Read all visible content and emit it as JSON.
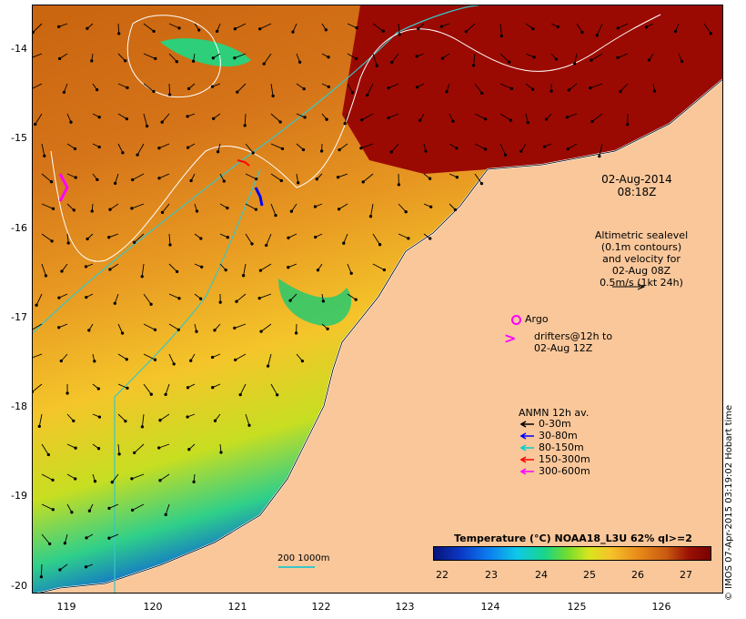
{
  "map": {
    "date_line1": "02-Aug-2014",
    "date_line2": "08:18Z",
    "alti_note_lines": [
      "Altimetric sealevel",
      "(0.1m contours)",
      "and velocity for",
      "02-Aug 08Z",
      "0.5m/s (1kt 24h)"
    ],
    "argo_label": "Argo",
    "drifters_line1": "drifters@12h to",
    "drifters_line2": "02-Aug 12Z",
    "anmn_title": "ANMN 12h av.",
    "anmn_items": [
      {
        "label": "0-30m",
        "color": "#000000"
      },
      {
        "label": "30-80m",
        "color": "#0000ff"
      },
      {
        "label": "80-150m",
        "color": "#00d0d0"
      },
      {
        "label": "150-300m",
        "color": "#ff0000"
      },
      {
        "label": "300-600m",
        "color": "#ff00ff"
      }
    ],
    "colorbar_title": "Temperature (°C) NOAA18_L3U 62% ql>=2",
    "colorbar_ticks": [
      "22",
      "23",
      "24",
      "25",
      "26",
      "27"
    ],
    "scale_label": "200  1000m",
    "credit": "© IMOS 07-Apr-2015 03:19:02 Hobart time",
    "lat_labels": [
      "-14",
      "-15",
      "-16",
      "-17",
      "-18",
      "-19",
      "-20"
    ],
    "lon_labels": [
      "119",
      "120",
      "121",
      "122",
      "123",
      "124",
      "125",
      "126"
    ],
    "colors": {
      "land": "#f9c79a",
      "argo": "#ff00ff",
      "contour": "#ffffff",
      "isobath": "#39c6c6"
    }
  }
}
